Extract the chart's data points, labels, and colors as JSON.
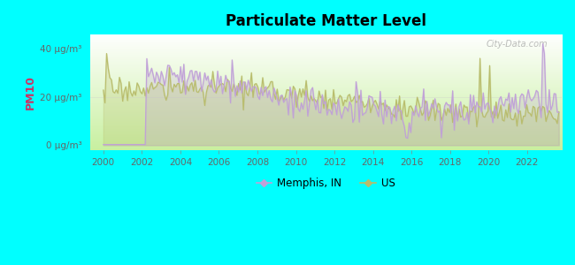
{
  "title": "Particulate Matter Level",
  "ylabel": "PM10",
  "ytick_labels": [
    "0 μg/m³",
    "20 μg/m³",
    "40 μg/m³"
  ],
  "ytick_values": [
    0,
    20,
    40
  ],
  "ylim": [
    -2,
    46
  ],
  "xlim": [
    1999.3,
    2023.8
  ],
  "xticks": [
    2000,
    2002,
    2004,
    2006,
    2008,
    2010,
    2012,
    2014,
    2016,
    2018,
    2020,
    2022
  ],
  "bg_color": "#00FFFF",
  "plot_bg_top": "#ffffff",
  "plot_bg_bottom": "#c8f0a0",
  "memphis_color": "#c0a0d8",
  "us_color": "#b8bc6a",
  "legend_memphis": "Memphis, IN",
  "legend_us": "US",
  "watermark": "City-Data.com",
  "ylabel_color": "#cc3366"
}
